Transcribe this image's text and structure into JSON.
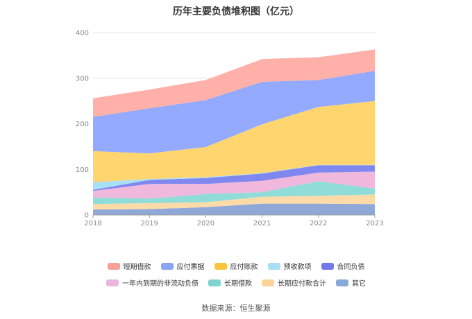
{
  "chart_data": {
    "type": "area",
    "stacked": true,
    "title": "历年主要负债堆积图（亿元）",
    "x": [
      "2018",
      "2019",
      "2020",
      "2021",
      "2022",
      "2023"
    ],
    "ylim": [
      0,
      400
    ],
    "yticks": [
      0,
      100,
      200,
      300,
      400
    ],
    "grid": true,
    "legend_position": "bottom",
    "series": [
      {
        "name": "其它",
        "color": "#8fa8d8",
        "values": [
          12,
          13,
          17,
          25,
          25,
          24
        ]
      },
      {
        "name": "长期应付款合计",
        "color": "#fcdba8",
        "values": [
          12,
          13,
          11,
          15,
          17,
          21
        ]
      },
      {
        "name": "长期借款",
        "color": "#8fdcd8",
        "values": [
          14,
          10,
          18,
          10,
          32,
          13
        ]
      },
      {
        "name": "一年内到期的非流动负债",
        "color": "#f0b8dc",
        "values": [
          15,
          32,
          22,
          25,
          19,
          37
        ]
      },
      {
        "name": "合同负债",
        "color": "#8088f0",
        "values": [
          2,
          9,
          13,
          16,
          16,
          14
        ]
      },
      {
        "name": "预收款项",
        "color": "#a8e0f8",
        "values": [
          17,
          2,
          2,
          1,
          1,
          1
        ]
      },
      {
        "name": "应付账款",
        "color": "#fed56e",
        "values": [
          68,
          56,
          66,
          107,
          127,
          140
        ]
      },
      {
        "name": "应付票据",
        "color": "#93aaff",
        "values": [
          75,
          99,
          103,
          93,
          59,
          66
        ]
      },
      {
        "name": "短期借款",
        "color": "#ffb0a8",
        "values": [
          41,
          41,
          44,
          50,
          50,
          47
        ]
      }
    ]
  },
  "legend": [
    [
      {
        "name": "短期借款",
        "color": "#f8a097"
      },
      {
        "name": "应付票据",
        "color": "#8aa3f5"
      },
      {
        "name": "应付账款",
        "color": "#fbc43c"
      },
      {
        "name": "预收款项",
        "color": "#a9def5"
      },
      {
        "name": "合同负债",
        "color": "#7479ea"
      }
    ],
    [
      {
        "name": "一年内到期的非流动负债",
        "color": "#ebb6dc"
      },
      {
        "name": "长期借款",
        "color": "#7fd4d0"
      },
      {
        "name": "长期应付款合计",
        "color": "#fbd49a"
      },
      {
        "name": "其它",
        "color": "#8aa8d8"
      }
    ]
  ],
  "source": "数据来源：恒生聚源"
}
